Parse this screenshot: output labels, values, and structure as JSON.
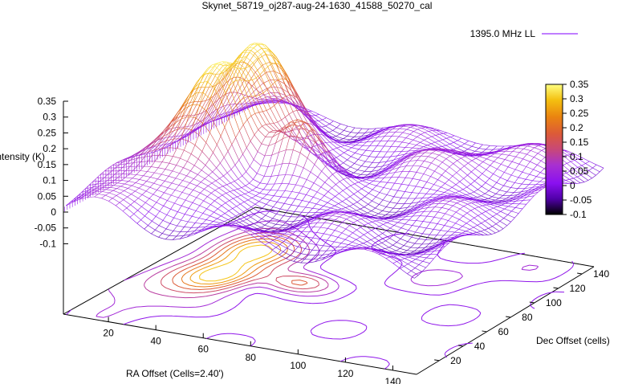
{
  "chart_data": {
    "type": "surface",
    "title": "Skynet_58719_oj287-aug-24-1630_41588_50270_cal",
    "xlabel": "RA Offset (Cells=2.40')",
    "ylabel": "Dec Offset (cells)",
    "zlabel": "Intensity (K)",
    "x_ticks": [
      20,
      40,
      60,
      80,
      100,
      120,
      140
    ],
    "y_ticks": [
      20,
      40,
      60,
      80,
      100,
      120,
      140
    ],
    "z_ticks": [
      -0.1,
      -0.05,
      0,
      0.05,
      0.1,
      0.15,
      0.2,
      0.25,
      0.3,
      0.35
    ],
    "xlim": [
      1,
      150
    ],
    "ylim": [
      1,
      150
    ],
    "zlim": [
      -0.1,
      0.35
    ],
    "colorbar": {
      "ticks": [
        -0.1,
        -0.05,
        0,
        0.05,
        0.1,
        0.15,
        0.2,
        0.25,
        0.3,
        0.35
      ],
      "colors": [
        "#000000",
        "#7a00d8",
        "#9a20ff",
        "#b030c8",
        "#d04a66",
        "#e86a20",
        "#f0a000",
        "#f8d010",
        "#ffff60"
      ]
    },
    "legend": {
      "label": "1395.0 MHz LL",
      "color": "#9b30ff",
      "position": "top-right"
    },
    "surface_note_peaks": [
      {
        "x": 30,
        "y": 60,
        "z": 0.33
      },
      {
        "x": 20,
        "y": 100,
        "z": 0.36
      },
      {
        "x": 60,
        "y": 80,
        "z": 0.22
      }
    ]
  }
}
